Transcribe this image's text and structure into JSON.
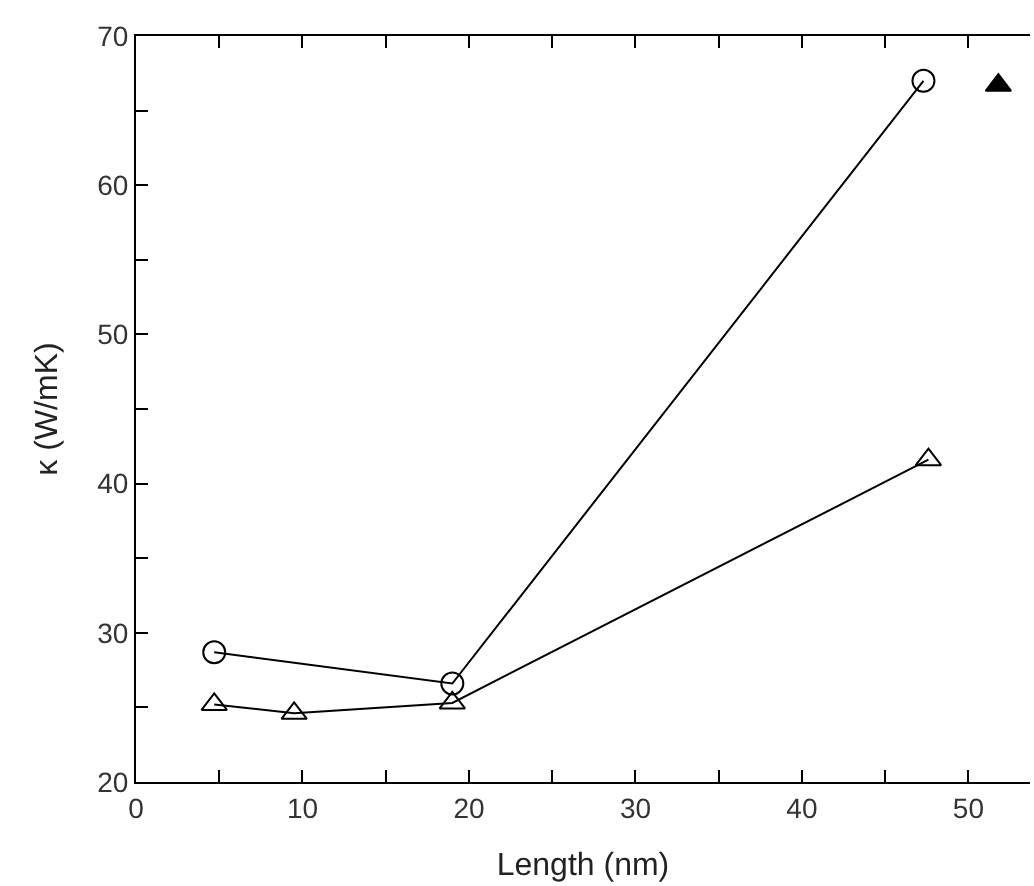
{
  "chart_data": {
    "type": "line",
    "xlabel": "Length (nm)",
    "ylabel": "κ (W/mK)",
    "xlim": [
      0,
      53.7
    ],
    "ylim": [
      20,
      70
    ],
    "xticks": [
      0,
      {
        "value": 5,
        "label": null
      },
      10,
      {
        "value": 15,
        "label": null
      },
      20,
      {
        "value": 25,
        "label": null
      },
      30,
      {
        "value": 35,
        "label": null
      },
      40,
      {
        "value": 45,
        "label": null
      },
      50
    ],
    "yticks": [
      20,
      {
        "value": 25,
        "label": null
      },
      30,
      {
        "value": 35,
        "label": null
      },
      40,
      {
        "value": 45,
        "label": null
      },
      50,
      {
        "value": 55,
        "label": null
      },
      60,
      {
        "value": 65,
        "label": null
      },
      70
    ],
    "line_style": "solid",
    "series": [
      {
        "marker": "circle",
        "color": "#000000",
        "x": [
          4.7,
          19.0,
          47.3
        ],
        "values": [
          28.7,
          26.6,
          67.0
        ]
      },
      {
        "marker": "triangle",
        "color": "#000000",
        "x": [
          4.7,
          9.5,
          19.0,
          47.6
        ],
        "values": [
          25.2,
          24.6,
          25.3,
          41.6
        ]
      },
      {
        "type": "scatter",
        "marker": "triangle",
        "color": "#000000",
        "x": [
          51.8
        ],
        "values": [
          66.7
        ]
      }
    ]
  }
}
